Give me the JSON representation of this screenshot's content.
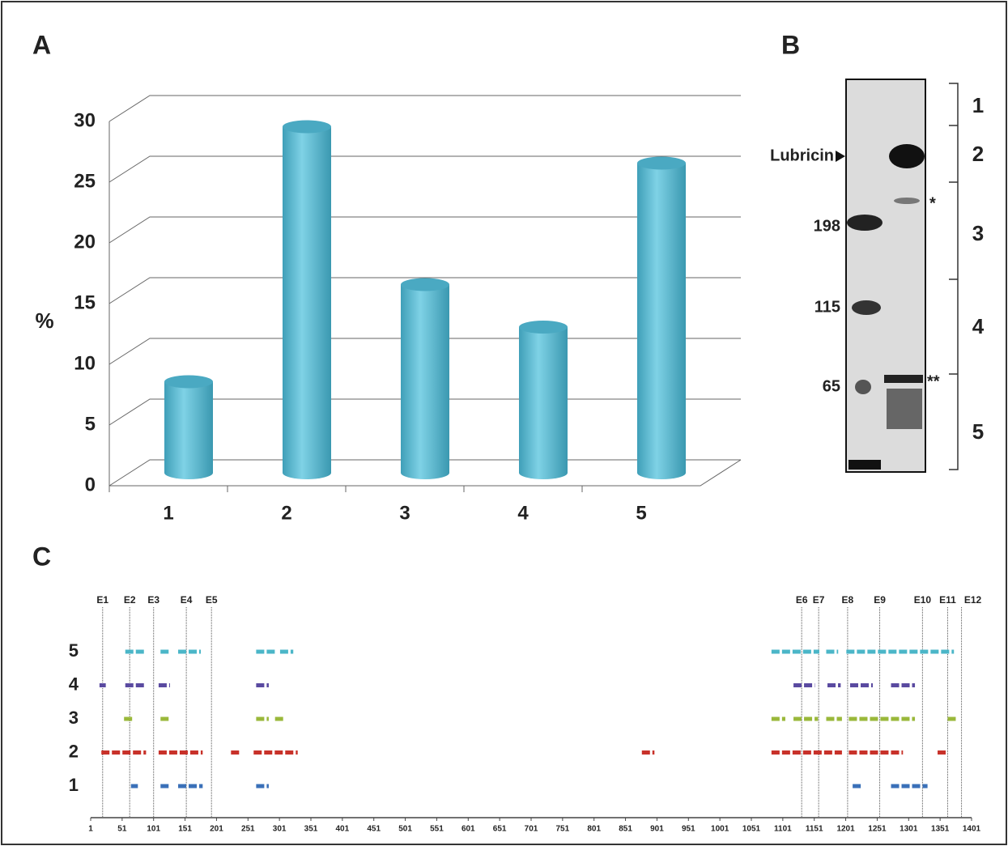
{
  "chart_data": [
    {
      "type": "bar3d",
      "title": "A",
      "y_label": "%",
      "categories": [
        "1",
        "2",
        "3",
        "4",
        "5"
      ],
      "values": [
        7.5,
        28.5,
        15.5,
        12,
        25.5
      ],
      "color": "#5bbcd4",
      "ylim": [
        0,
        30
      ],
      "yticks": [
        0,
        5,
        10,
        15,
        20,
        25,
        30
      ],
      "grid": true
    },
    {
      "type": "segments",
      "title": "C",
      "categories": [
        "1",
        "2",
        "3",
        "4",
        "5"
      ],
      "series": [
        {
          "color": "#3a70b8",
          "segments": [
            [
              65,
              76
            ],
            [
              112,
              127
            ],
            [
              140,
              179
            ],
            [
              264,
              284
            ],
            [
              1212,
              1225
            ],
            [
              1273,
              1331
            ]
          ]
        },
        {
          "color": "#c8322a",
          "segments": [
            [
              18,
              89
            ],
            [
              109,
              179
            ],
            [
              224,
              240
            ],
            [
              260,
              330
            ],
            [
              877,
              897
            ],
            [
              1083,
              1195
            ],
            [
              1206,
              1292
            ],
            [
              1347,
              1363
            ]
          ]
        },
        {
          "color": "#9ab83a",
          "segments": [
            [
              54,
              67
            ],
            [
              112,
              127
            ],
            [
              264,
              284
            ],
            [
              294,
              310
            ],
            [
              1083,
              1105
            ],
            [
              1118,
              1157
            ],
            [
              1170,
              1195
            ],
            [
              1206,
              1311
            ],
            [
              1363,
              1376
            ]
          ]
        },
        {
          "color": "#5a4aa0",
          "segments": [
            [
              15,
              25
            ],
            [
              56,
              89
            ],
            [
              109,
              127
            ],
            [
              264,
              284
            ],
            [
              1118,
              1152
            ],
            [
              1172,
              1193
            ],
            [
              1208,
              1244
            ],
            [
              1273,
              1311
            ]
          ]
        },
        {
          "color": "#4bb6c8",
          "segments": [
            [
              56,
              89
            ],
            [
              112,
              127
            ],
            [
              140,
              176
            ],
            [
              264,
              294
            ],
            [
              302,
              323
            ],
            [
              1083,
              1159
            ],
            [
              1170,
              1189
            ],
            [
              1202,
              1373
            ]
          ]
        }
      ],
      "markers": [
        {
          "label": "E1",
          "value": 20
        },
        {
          "label": "E2",
          "value": 63
        },
        {
          "label": "E3",
          "value": 101
        },
        {
          "label": "E4",
          "value": 153
        },
        {
          "label": "E5",
          "value": 193
        },
        {
          "label": "E6",
          "value": 1131
        },
        {
          "label": "E7",
          "value": 1158
        },
        {
          "label": "E8",
          "value": 1204
        },
        {
          "label": "E9",
          "value": 1255
        },
        {
          "label": "E10",
          "value": 1323
        },
        {
          "label": "E11",
          "value": 1363
        },
        {
          "label": "E12",
          "value": 1385
        }
      ],
      "xlim": [
        1,
        1401
      ],
      "xticks": [
        1,
        51,
        101,
        151,
        201,
        251,
        301,
        351,
        401,
        451,
        501,
        551,
        601,
        651,
        701,
        751,
        801,
        851,
        901,
        951,
        1001,
        1051,
        1101,
        1151,
        1201,
        1251,
        1301,
        1351,
        1401
      ]
    }
  ],
  "gel": {
    "panel_label": "B",
    "arrow_label": "Lubricin",
    "markers": [
      "198",
      "115",
      "65"
    ],
    "stars": [
      "*",
      "**"
    ],
    "fractions": [
      "1",
      "2",
      "3",
      "4",
      "5"
    ]
  }
}
